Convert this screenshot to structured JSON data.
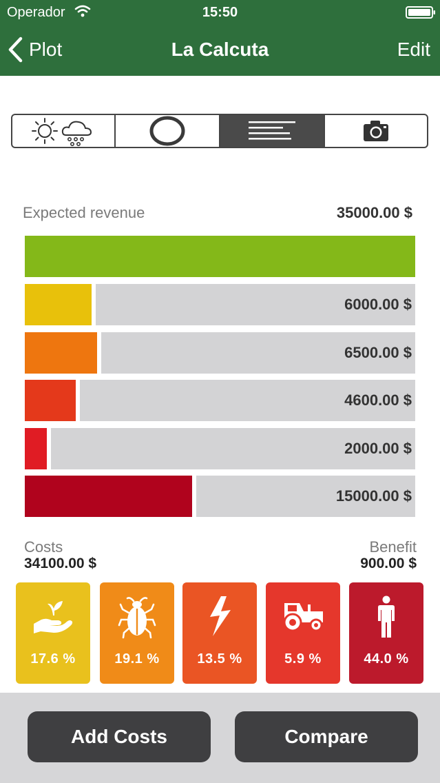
{
  "status_bar": {
    "carrier": "Operador",
    "time": "15:50"
  },
  "nav": {
    "back_label": "Plot",
    "title": "La Calcuta",
    "edit_label": "Edit"
  },
  "segments": [
    {
      "icon": "weather-icon",
      "active": false
    },
    {
      "icon": "circle-chart-icon",
      "active": false
    },
    {
      "icon": "bar-list-icon",
      "active": true
    },
    {
      "icon": "camera-icon",
      "active": false
    }
  ],
  "revenue": {
    "label": "Expected revenue",
    "value": "35000.00 $",
    "color": "#84b819"
  },
  "cost_rows": [
    {
      "value": "6000.00 $",
      "color": "#e8c10b",
      "fraction": 0.171
    },
    {
      "value": "6500.00 $",
      "color": "#ee760f",
      "fraction": 0.186
    },
    {
      "value": "4600.00 $",
      "color": "#e4391b",
      "fraction": 0.131
    },
    {
      "value": "2000.00 $",
      "color": "#e01c24",
      "fraction": 0.057
    },
    {
      "value": "15000.00 $",
      "color": "#b0031d",
      "fraction": 0.429
    }
  ],
  "summary": {
    "costs_label": "Costs",
    "costs_value": "34100.00 $",
    "benefit_label": "Benefit",
    "benefit_value": "900.00 $"
  },
  "categories": [
    {
      "icon": "seedling-hand-icon",
      "percent": "17.6 %",
      "color": "#e9c11d"
    },
    {
      "icon": "bug-icon",
      "percent": "19.1 %",
      "color": "#f08b18"
    },
    {
      "icon": "lightning-icon",
      "percent": "13.5 %",
      "color": "#ea5524"
    },
    {
      "icon": "tractor-icon",
      "percent": "5.9 %",
      "color": "#e5372c"
    },
    {
      "icon": "person-icon",
      "percent": "44.0 %",
      "color": "#bc1a2c"
    }
  ],
  "buttons": {
    "add_costs": "Add Costs",
    "compare": "Compare"
  }
}
